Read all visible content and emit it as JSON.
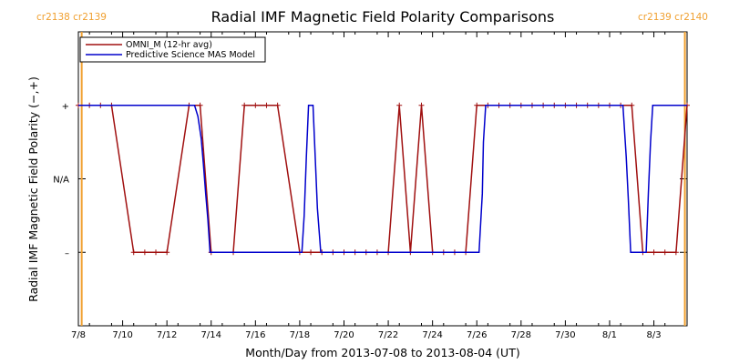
{
  "chart_data": {
    "type": "line",
    "title": "Radial IMF Magnetic Field Polarity Comparisons",
    "xlabel": "Month/Day from 2013-07-08 to 2013-08-04 (UT)",
    "ylabel": "Radial IMF Magnetic Field Polarity (−,+)",
    "x_unit": "days since 2013-07-08 00:00 UT",
    "xlim": [
      0,
      27.5
    ],
    "ylim": [
      -2,
      2
    ],
    "x_ticks": [
      {
        "x": 0,
        "label": "7/8"
      },
      {
        "x": 2,
        "label": "7/10"
      },
      {
        "x": 4,
        "label": "7/12"
      },
      {
        "x": 6,
        "label": "7/14"
      },
      {
        "x": 8,
        "label": "7/16"
      },
      {
        "x": 10,
        "label": "7/18"
      },
      {
        "x": 12,
        "label": "7/20"
      },
      {
        "x": 14,
        "label": "7/22"
      },
      {
        "x": 16,
        "label": "7/24"
      },
      {
        "x": 18,
        "label": "7/26"
      },
      {
        "x": 20,
        "label": "7/28"
      },
      {
        "x": 22,
        "label": "7/30"
      },
      {
        "x": 24,
        "label": "8/1"
      },
      {
        "x": 26,
        "label": "8/3"
      }
    ],
    "y_ticks": [
      {
        "y": 1,
        "label": "+"
      },
      {
        "y": 0,
        "label": "N/A"
      },
      {
        "y": -1,
        "label": "–"
      }
    ],
    "carrington_markers": [
      {
        "x": 0.15,
        "label": "cr2138 cr2139",
        "align": "left"
      },
      {
        "x": 27.4,
        "label": "cr2139 cr2140",
        "align": "right"
      }
    ],
    "series": [
      {
        "name": "OMNI_M (12-hr avg)",
        "color": "#a01010",
        "marker": "+",
        "points": [
          [
            0,
            1
          ],
          [
            0.5,
            1
          ],
          [
            1,
            1
          ],
          [
            1.5,
            1
          ],
          [
            2.5,
            -1
          ],
          [
            3,
            -1
          ],
          [
            3.5,
            -1
          ],
          [
            4,
            -1
          ],
          [
            5,
            1
          ],
          [
            5.5,
            1
          ],
          [
            6,
            -1
          ],
          [
            7,
            -1
          ],
          [
            7.5,
            1
          ],
          [
            8,
            1
          ],
          [
            8.5,
            1
          ],
          [
            9,
            1
          ],
          [
            10,
            -1
          ],
          [
            10.5,
            -1
          ],
          [
            11,
            -1
          ],
          [
            11.5,
            -1
          ],
          [
            12,
            -1
          ],
          [
            12.5,
            -1
          ],
          [
            13,
            -1
          ],
          [
            13.5,
            -1
          ],
          [
            14,
            -1
          ],
          [
            14.5,
            1
          ],
          [
            15,
            -1
          ],
          [
            15.5,
            1
          ],
          [
            16,
            -1
          ],
          [
            16.5,
            -1
          ],
          [
            17,
            -1
          ],
          [
            17.5,
            -1
          ],
          [
            18,
            1
          ],
          [
            18.5,
            1
          ],
          [
            19,
            1
          ],
          [
            19.5,
            1
          ],
          [
            20,
            1
          ],
          [
            20.5,
            1
          ],
          [
            21,
            1
          ],
          [
            21.5,
            1
          ],
          [
            22,
            1
          ],
          [
            22.5,
            1
          ],
          [
            23,
            1
          ],
          [
            23.5,
            1
          ],
          [
            24,
            1
          ],
          [
            24.5,
            1
          ],
          [
            25,
            1
          ],
          [
            25.5,
            -1
          ],
          [
            26,
            -1
          ],
          [
            26.5,
            -1
          ],
          [
            27,
            -1
          ],
          [
            27.5,
            1
          ]
        ]
      },
      {
        "name": "Predictive Science MAS Model",
        "color": "#0000cc",
        "marker": "",
        "points": [
          [
            0,
            1
          ],
          [
            5.25,
            1
          ],
          [
            5.4,
            0.85
          ],
          [
            5.55,
            0.55
          ],
          [
            5.65,
            0.2
          ],
          [
            5.75,
            -0.2
          ],
          [
            5.85,
            -0.55
          ],
          [
            5.95,
            -1
          ],
          [
            10.1,
            -1
          ],
          [
            10.2,
            -0.5
          ],
          [
            10.3,
            0.3
          ],
          [
            10.4,
            1
          ],
          [
            10.6,
            1
          ],
          [
            10.7,
            0.3
          ],
          [
            10.8,
            -0.4
          ],
          [
            10.95,
            -1
          ],
          [
            18.1,
            -1
          ],
          [
            18.25,
            -0.2
          ],
          [
            18.3,
            0.5
          ],
          [
            18.4,
            1
          ],
          [
            24.6,
            1
          ],
          [
            24.75,
            0.3
          ],
          [
            24.85,
            -0.3
          ],
          [
            24.95,
            -1
          ],
          [
            25.65,
            -1
          ],
          [
            25.75,
            -0.2
          ],
          [
            25.85,
            0.5
          ],
          [
            25.95,
            1
          ],
          [
            27.5,
            1
          ]
        ]
      }
    ],
    "legend": {
      "position": "top-left"
    },
    "colors": {
      "axis": "#000000",
      "carrington_line": "#f0a030"
    }
  }
}
